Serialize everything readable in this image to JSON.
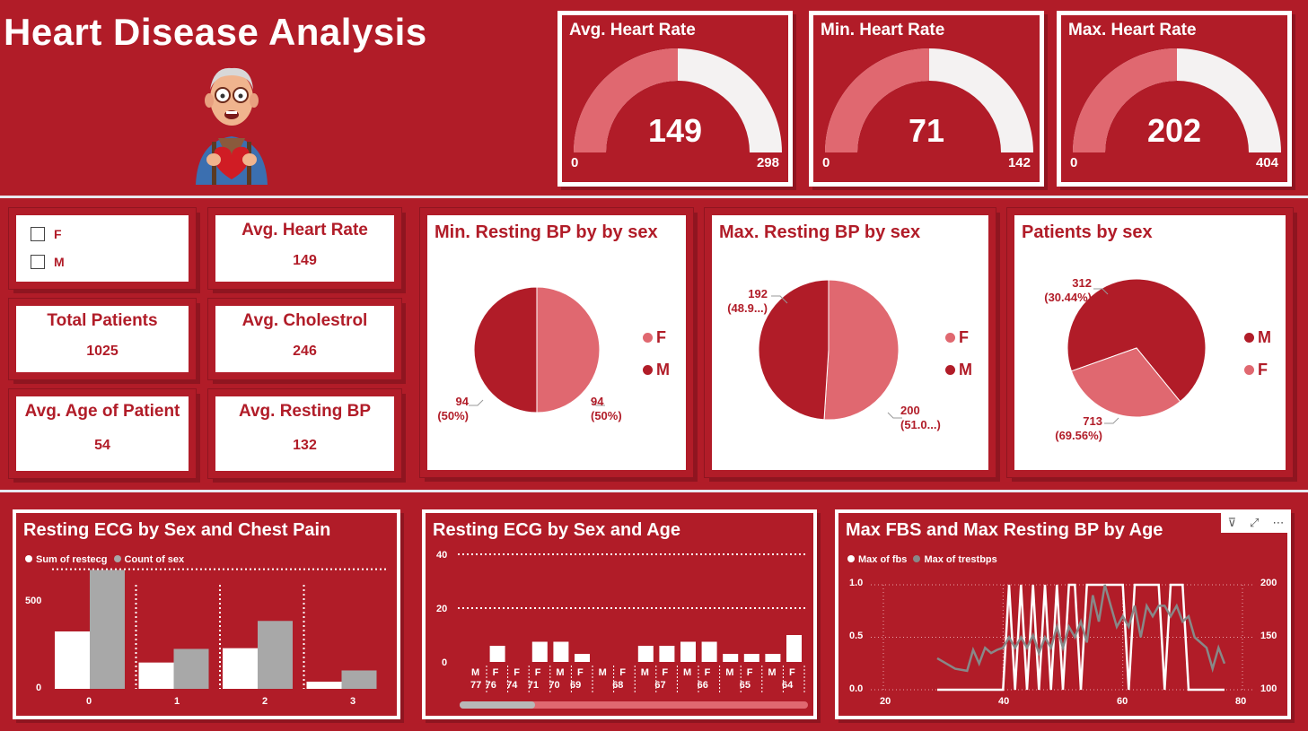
{
  "header": {
    "title": "Heart Disease Analysis"
  },
  "gauges": [
    {
      "title": "Avg. Heart Rate",
      "value": "149",
      "min": "0",
      "max": "298",
      "fraction": 0.5
    },
    {
      "title": "Min. Heart Rate",
      "value": "71",
      "min": "0",
      "max": "142",
      "fraction": 0.5
    },
    {
      "title": "Max. Heart Rate",
      "value": "202",
      "min": "0",
      "max": "404",
      "fraction": 0.5
    }
  ],
  "slicer": {
    "options": [
      "F",
      "M"
    ]
  },
  "kpis": {
    "avg_heart_rate": {
      "label": "Avg. Heart Rate",
      "value": "149"
    },
    "total_patients": {
      "label": "Total Patients",
      "value": "1025"
    },
    "avg_cholestrol": {
      "label": "Avg. Cholestrol",
      "value": "246"
    },
    "avg_age": {
      "label": "Avg. Age of Patient",
      "value": "54"
    },
    "avg_resting_bp": {
      "label": "Avg. Resting BP",
      "value": "132"
    }
  },
  "colors": {
    "background": "#b11c28",
    "dark_red": "#b11c28",
    "light_red": "#e06870",
    "white": "#ffffff",
    "gray": "#a8a8a8"
  },
  "chart_data": [
    {
      "type": "pie",
      "title": "Min. Resting BP by by sex",
      "legend": [
        "F",
        "M"
      ],
      "labels": [
        "F",
        "M"
      ],
      "values": [
        94,
        94
      ],
      "label_text": [
        [
          "94",
          "(50%)"
        ],
        [
          "94",
          "(50%)"
        ]
      ]
    },
    {
      "type": "pie",
      "title": "Max. Resting BP by sex",
      "legend": [
        "F",
        "M"
      ],
      "labels": [
        "F",
        "M"
      ],
      "values": [
        200,
        192
      ],
      "label_text": [
        [
          "200",
          "(51.0...)"
        ],
        [
          "192",
          "(48.9...)"
        ]
      ]
    },
    {
      "type": "pie",
      "title": "Patients by sex",
      "legend": [
        "M",
        "F"
      ],
      "labels": [
        "M",
        "F"
      ],
      "values": [
        713,
        312
      ],
      "label_text": [
        [
          "713",
          "(69.56%)"
        ],
        [
          "312",
          "(30.44%)"
        ]
      ]
    },
    {
      "type": "bar",
      "title": "Resting ECG by Sex and Chest Pain",
      "categories": [
        "0",
        "1",
        "2",
        "3"
      ],
      "series": [
        {
          "name": "Sum of restecg",
          "values": [
            240,
            110,
            170,
            30
          ]
        },
        {
          "name": "Count of sex",
          "values": [
            497,
            167,
            284,
            77
          ]
        }
      ],
      "yticks": [
        "500",
        "0"
      ],
      "ylim": [
        0,
        600
      ]
    },
    {
      "type": "bar",
      "title": "Resting ECG by Sex and Age",
      "categories": [
        {
          "sex": "M",
          "age": "77"
        },
        {
          "sex": "F",
          "age": "76"
        },
        {
          "sex": "F",
          "age": "74"
        },
        {
          "sex": "F",
          "age": "71"
        },
        {
          "sex": "M",
          "age": "70"
        },
        {
          "sex": "F",
          "age": "69"
        },
        {
          "sex": "M",
          "age": ""
        },
        {
          "sex": "F",
          "age": "68"
        },
        {
          "sex": "M",
          "age": ""
        },
        {
          "sex": "F",
          "age": "67"
        },
        {
          "sex": "M",
          "age": ""
        },
        {
          "sex": "F",
          "age": "66"
        },
        {
          "sex": "M",
          "age": ""
        },
        {
          "sex": "F",
          "age": "65"
        },
        {
          "sex": "M",
          "age": ""
        },
        {
          "sex": "F",
          "age": "64"
        }
      ],
      "values": [
        0,
        6,
        0,
        7.5,
        7.5,
        3,
        0,
        0,
        6,
        6,
        7.5,
        7.5,
        3,
        3,
        3,
        10
      ],
      "yticks": [
        "40",
        "20",
        "0"
      ],
      "ylim": [
        0,
        40
      ]
    },
    {
      "type": "line",
      "title": "Max FBS and Max Resting BP by Age",
      "series": [
        {
          "name": "Max of fbs",
          "axis": "left",
          "x": [
            29,
            34,
            35,
            37,
            38,
            39,
            40,
            41,
            42,
            43,
            44,
            45,
            46,
            47,
            48,
            49,
            50,
            51,
            52,
            53,
            54,
            55,
            56,
            57,
            58,
            59,
            60,
            61,
            62,
            63,
            64,
            65,
            66,
            67,
            68,
            69,
            70,
            71,
            74,
            76,
            77
          ],
          "y": [
            0,
            0,
            0,
            0,
            0,
            0,
            0,
            1,
            0,
            1,
            0,
            1,
            0,
            1,
            0,
            1,
            0,
            1,
            1,
            0,
            1,
            1,
            1,
            1,
            1,
            1,
            1,
            0,
            1,
            1,
            1,
            1,
            1,
            0,
            1,
            1,
            1,
            0,
            0,
            0,
            0
          ]
        },
        {
          "name": "Max of trestbps",
          "axis": "right",
          "x": [
            29,
            32,
            34,
            35,
            36,
            37,
            38,
            39,
            40,
            41,
            42,
            43,
            44,
            45,
            46,
            47,
            48,
            49,
            50,
            51,
            52,
            53,
            54,
            55,
            56,
            57,
            58,
            59,
            60,
            61,
            62,
            63,
            64,
            65,
            66,
            67,
            68,
            69,
            70,
            71,
            72,
            74,
            75,
            76,
            77
          ],
          "y": [
            130,
            120,
            118,
            138,
            125,
            140,
            135,
            138,
            140,
            150,
            140,
            150,
            140,
            152,
            135,
            150,
            140,
            160,
            140,
            160,
            150,
            165,
            145,
            190,
            165,
            200,
            180,
            160,
            170,
            160,
            180,
            150,
            180,
            170,
            180,
            180,
            170,
            180,
            165,
            170,
            150,
            140,
            120,
            140,
            125
          ]
        }
      ],
      "xticks": [
        "20",
        "40",
        "60",
        "80"
      ],
      "yticks_left": [
        "1.0",
        "0.5",
        "0.0"
      ],
      "yticks_right": [
        "200",
        "150",
        "100"
      ],
      "xlim": [
        20,
        80
      ],
      "ylim_left": [
        0,
        1
      ],
      "ylim_right": [
        100,
        200
      ]
    }
  ]
}
